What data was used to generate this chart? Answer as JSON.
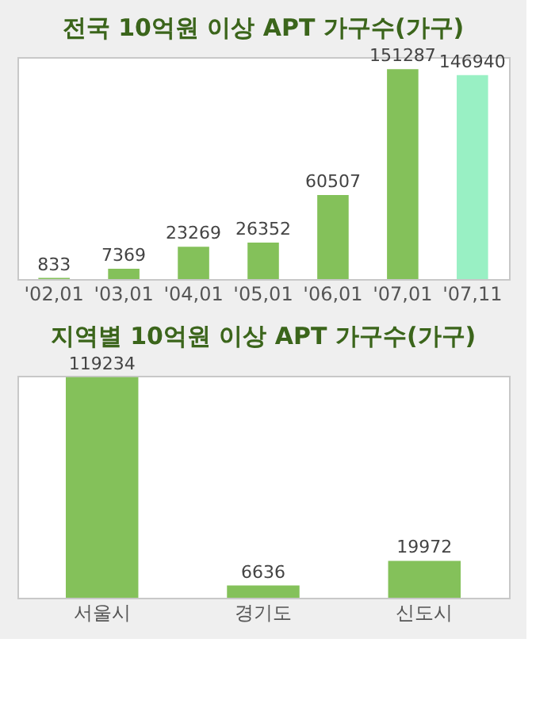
{
  "chart_data": [
    {
      "type": "bar",
      "title": "전국 10억원 이상 APT 가구수(가구)",
      "categories": [
        "'02,01",
        "'03,01",
        "'04,01",
        "'05,01",
        "'06,01",
        "'07,01",
        "'07,11"
      ],
      "values": [
        833,
        7369,
        23269,
        26352,
        60507,
        151287,
        146940
      ],
      "colors": [
        "#84c15a",
        "#84c15a",
        "#84c15a",
        "#84c15a",
        "#84c15a",
        "#84c15a",
        "#99f0c4"
      ],
      "data_labels": true
    },
    {
      "type": "bar",
      "title": "지역별 10억원 이상 APT 가구수(가구)",
      "categories": [
        "서울시",
        "경기도",
        "신도시"
      ],
      "values": [
        119234,
        6636,
        19972
      ],
      "colors": [
        "#84c15a",
        "#84c15a",
        "#84c15a"
      ],
      "data_labels": true
    }
  ]
}
